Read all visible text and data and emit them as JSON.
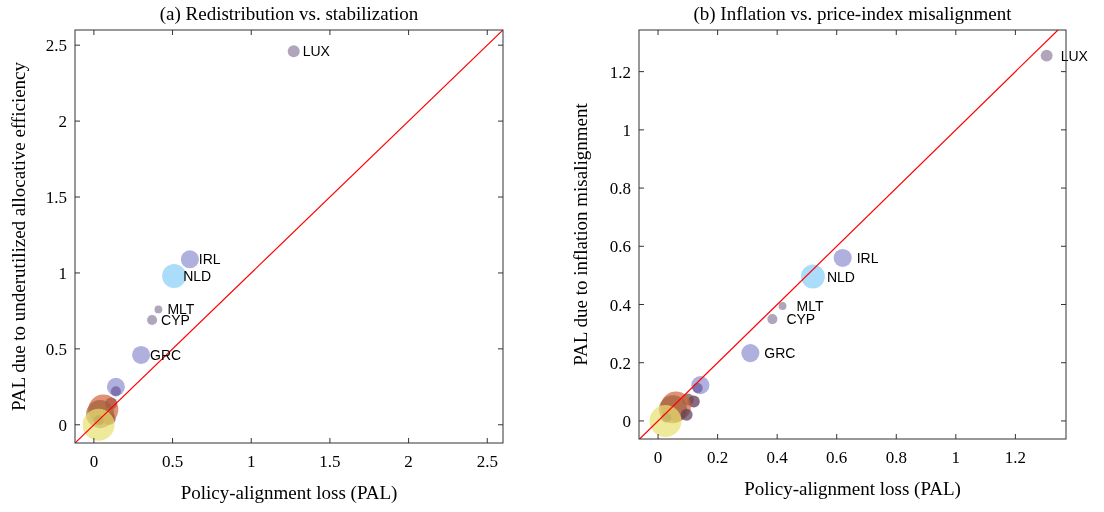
{
  "chart_data": [
    {
      "type": "bubble",
      "title": "(a) Redistribution vs. stabilization",
      "xlabel": "Policy-alignment loss (PAL)",
      "ylabel": "PAL due to underutilized allocative efficiency",
      "xlim": [
        -0.12,
        2.6
      ],
      "ylim": [
        -0.12,
        2.6
      ],
      "xticks": [
        0,
        0.5,
        1,
        1.5,
        2,
        2.5
      ],
      "yticks": [
        0,
        0.5,
        1,
        1.5,
        2,
        2.5
      ],
      "grid": false,
      "series": [
        {
          "type": "bubble",
          "x": [
            1.27,
            0.61,
            0.51,
            0.41,
            0.37,
            0.3,
            0.14,
            0.14,
            0.11,
            0.1,
            0.06,
            0.04,
            0.03,
            0.03
          ],
          "values": [
            2.46,
            1.09,
            0.98,
            0.76,
            0.69,
            0.46,
            0.25,
            0.22,
            0.14,
            0.04,
            0.1,
            0.07,
            0.03,
            0.0
          ],
          "sizes": [
            0.14,
            0.32,
            0.56,
            0.06,
            0.1,
            0.32,
            0.32,
            0.1,
            0.14,
            0.14,
            0.88,
            0.77,
            0.1,
            1
          ],
          "colors": [
            "#8e7f9c",
            "#8f8fd0",
            "#87cefa",
            "#8e7f9c",
            "#8e7f9c",
            "#8f8fd0",
            "#8f8fd0",
            "#6a5a9a",
            "#5a2a4a",
            "#6a4a4a",
            "#d2643a",
            "#a0603a",
            "#5a3a3a",
            "#e8e070"
          ]
        },
        {
          "type": "line",
          "color": "#ff0000",
          "x": [
            -0.12,
            2.6
          ],
          "values": [
            -0.12,
            2.6
          ]
        }
      ],
      "annotations": [
        {
          "text": "LUX",
          "x": 1.27,
          "y": 2.46
        },
        {
          "text": "IRL",
          "x": 0.61,
          "y": 1.09
        },
        {
          "text": "NLD",
          "x": 0.51,
          "y": 0.98
        },
        {
          "text": "MLT",
          "x": 0.41,
          "y": 0.76
        },
        {
          "text": "CYP",
          "x": 0.37,
          "y": 0.69
        },
        {
          "text": "GRC",
          "x": 0.3,
          "y": 0.46
        }
      ]
    },
    {
      "type": "bubble",
      "title": "(b) Inflation vs. price-index misalignment",
      "xlabel": "Policy-alignment loss (PAL)",
      "ylabel": "PAL due to inflation misalignment",
      "xlim": [
        -0.064,
        1.37
      ],
      "ylim": [
        -0.062,
        1.343
      ],
      "xticks": [
        0,
        0.2,
        0.4,
        0.6,
        0.8,
        1,
        1.2
      ],
      "yticks": [
        0,
        0.2,
        0.4,
        0.6,
        0.8,
        1,
        1.2
      ],
      "grid": false,
      "series": [
        {
          "type": "bubble",
          "x": [
            1.305,
            0.62,
            0.52,
            0.418,
            0.384,
            0.31,
            0.142,
            0.133,
            0.12,
            0.1,
            0.06,
            0.05,
            0.096,
            0.027,
            0.025
          ],
          "values": [
            1.255,
            0.56,
            0.496,
            0.395,
            0.35,
            0.233,
            0.123,
            0.113,
            0.067,
            0.074,
            0.05,
            0.04,
            0.021,
            0.012,
            0.0
          ],
          "sizes": [
            0.14,
            0.32,
            0.56,
            0.06,
            0.1,
            0.32,
            0.32,
            0.1,
            0.14,
            0.14,
            0.88,
            0.77,
            0.14,
            0.1,
            1
          ],
          "colors": [
            "#8e7f9c",
            "#8f8fd0",
            "#87cefa",
            "#8e7f9c",
            "#8e7f9c",
            "#8f8fd0",
            "#8f8fd0",
            "#6a5a9a",
            "#5a2a4a",
            "#6a4a4a",
            "#d2643a",
            "#a0603a",
            "#5a3a5a",
            "#5a3a3a",
            "#e8e070"
          ]
        },
        {
          "type": "line",
          "color": "#ff0000",
          "x": [
            -0.062,
            1.343
          ],
          "values": [
            -0.062,
            1.343
          ]
        }
      ],
      "annotations": [
        {
          "text": "LUX",
          "x": 1.305,
          "y": 1.255
        },
        {
          "text": "IRL",
          "x": 0.62,
          "y": 0.56
        },
        {
          "text": "NLD",
          "x": 0.52,
          "y": 0.496
        },
        {
          "text": "MLT",
          "x": 0.418,
          "y": 0.395
        },
        {
          "text": "CYP",
          "x": 0.384,
          "y": 0.35
        },
        {
          "text": "GRC",
          "x": 0.31,
          "y": 0.233
        }
      ]
    }
  ]
}
